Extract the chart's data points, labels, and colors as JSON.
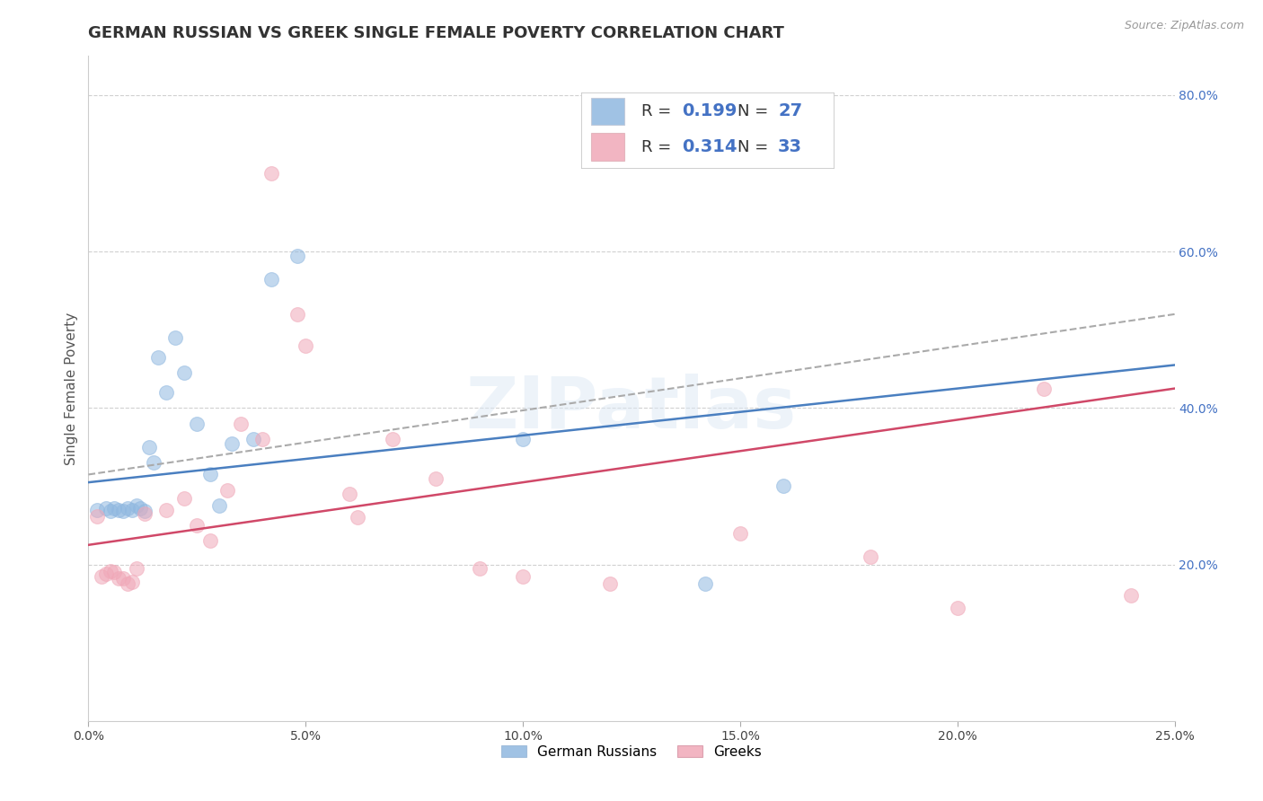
{
  "title": "GERMAN RUSSIAN VS GREEK SINGLE FEMALE POVERTY CORRELATION CHART",
  "source": "Source: ZipAtlas.com",
  "ylabel": "Single Female Poverty",
  "watermark": "ZIPatlas",
  "xlim": [
    0.0,
    0.25
  ],
  "ylim": [
    0.0,
    0.85
  ],
  "xtick_labels": [
    "0.0%",
    "5.0%",
    "10.0%",
    "15.0%",
    "20.0%",
    "25.0%"
  ],
  "xtick_values": [
    0.0,
    0.05,
    0.1,
    0.15,
    0.2,
    0.25
  ],
  "ytick_labels": [
    "20.0%",
    "40.0%",
    "60.0%",
    "80.0%"
  ],
  "ytick_values": [
    0.2,
    0.4,
    0.6,
    0.8
  ],
  "blue_color": "#90b8e0",
  "pink_color": "#f0a8b8",
  "blue_line_color": "#4a7fc0",
  "pink_line_color": "#d04868",
  "legend_R_blue": "0.199",
  "legend_N_blue": "27",
  "legend_R_pink": "0.314",
  "legend_N_pink": "33",
  "legend_label_blue": "German Russians",
  "legend_label_pink": "Greeks",
  "legend_text_color": "#4472c4",
  "blue_scatter_x": [
    0.002,
    0.004,
    0.005,
    0.006,
    0.007,
    0.008,
    0.009,
    0.01,
    0.011,
    0.012,
    0.013,
    0.014,
    0.015,
    0.016,
    0.018,
    0.02,
    0.022,
    0.025,
    0.028,
    0.03,
    0.033,
    0.038,
    0.042,
    0.048,
    0.1,
    0.142,
    0.16
  ],
  "blue_scatter_y": [
    0.27,
    0.272,
    0.268,
    0.272,
    0.27,
    0.268,
    0.272,
    0.27,
    0.275,
    0.272,
    0.268,
    0.35,
    0.33,
    0.465,
    0.42,
    0.49,
    0.445,
    0.38,
    0.315,
    0.275,
    0.355,
    0.36,
    0.565,
    0.595,
    0.36,
    0.175,
    0.3
  ],
  "pink_scatter_x": [
    0.002,
    0.003,
    0.004,
    0.005,
    0.006,
    0.007,
    0.008,
    0.009,
    0.01,
    0.011,
    0.013,
    0.018,
    0.022,
    0.025,
    0.028,
    0.032,
    0.035,
    0.04,
    0.042,
    0.048,
    0.05,
    0.06,
    0.062,
    0.07,
    0.08,
    0.09,
    0.1,
    0.12,
    0.15,
    0.18,
    0.2,
    0.22,
    0.24
  ],
  "pink_scatter_y": [
    0.262,
    0.185,
    0.188,
    0.192,
    0.19,
    0.182,
    0.182,
    0.175,
    0.178,
    0.195,
    0.265,
    0.27,
    0.285,
    0.25,
    0.23,
    0.295,
    0.38,
    0.36,
    0.7,
    0.52,
    0.48,
    0.29,
    0.26,
    0.36,
    0.31,
    0.195,
    0.185,
    0.175,
    0.24,
    0.21,
    0.145,
    0.425,
    0.16
  ],
  "blue_trendline_x": [
    0.0,
    0.25
  ],
  "blue_trendline_y": [
    0.305,
    0.455
  ],
  "pink_trendline_x": [
    0.0,
    0.25
  ],
  "pink_trendline_y": [
    0.225,
    0.425
  ],
  "grid_color": "#d0d0d0",
  "background_color": "#ffffff",
  "title_fontsize": 13,
  "axis_label_fontsize": 11,
  "tick_fontsize": 10,
  "scatter_size": 130,
  "scatter_alpha": 0.55,
  "scatter_linewidth": 0.8
}
